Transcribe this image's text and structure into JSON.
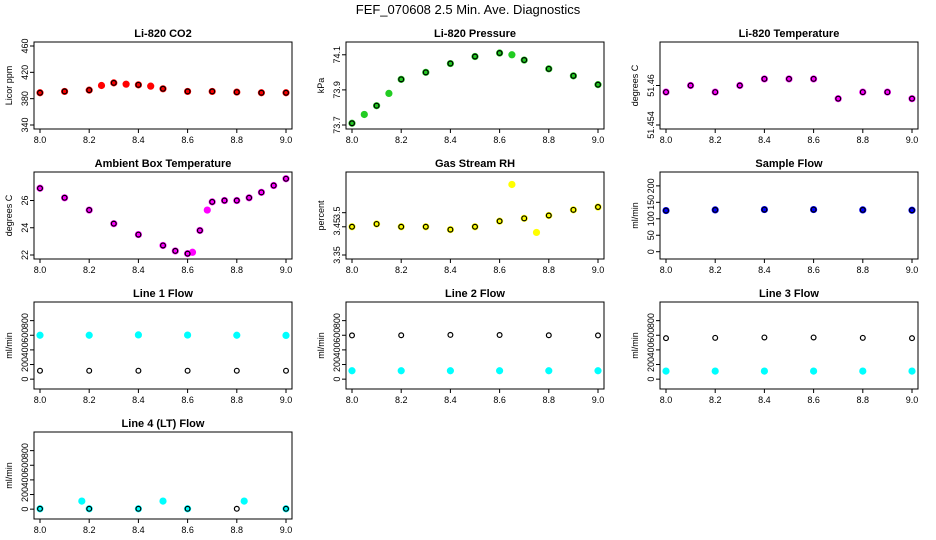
{
  "title": "FEF_070608  2.5 Min. Ave. Diagnostics",
  "colors": {
    "black": "#000000",
    "red": "#ff0000",
    "green": "#22cc22",
    "magenta": "#ff00ff",
    "yellow": "#ffff00",
    "blue": "#0000ff",
    "cyan": "#00ffff"
  },
  "chart_data": [
    {
      "type": "scatter",
      "title": "Li-820 CO2",
      "ylabel": "Licor ppm",
      "xlim": [
        8.0,
        9.0
      ],
      "ylim": [
        340,
        460
      ],
      "xticks": [
        8.0,
        8.2,
        8.4,
        8.6,
        8.8,
        9.0
      ],
      "yticks": [
        340,
        380,
        420,
        460
      ],
      "series": [
        {
          "color": "red",
          "x": [
            8.0,
            8.1,
            8.2,
            8.25,
            8.3,
            8.35,
            8.4,
            8.45,
            8.5,
            8.6,
            8.7,
            8.8,
            8.9,
            9.0
          ],
          "y": [
            389,
            391,
            393,
            400,
            404,
            402,
            401,
            399,
            395,
            391,
            391,
            390,
            389,
            389
          ]
        },
        {
          "color": "black",
          "x": [
            8.0,
            8.1,
            8.2,
            8.3,
            8.4,
            8.5,
            8.6,
            8.7,
            8.8,
            8.9,
            9.0
          ],
          "y": [
            389,
            391,
            393,
            404,
            401,
            395,
            391,
            391,
            390,
            389,
            389
          ]
        }
      ]
    },
    {
      "type": "scatter",
      "title": "Li-820 Pressure",
      "ylabel": "kPa",
      "xlim": [
        8.0,
        9.0
      ],
      "ylim": [
        73.7,
        74.15
      ],
      "xticks": [
        8.0,
        8.2,
        8.4,
        8.6,
        8.8,
        9.0
      ],
      "yticks": [
        73.7,
        73.9,
        74.1
      ],
      "series": [
        {
          "color": "green",
          "x": [
            8.0,
            8.05,
            8.1,
            8.15,
            8.2,
            8.3,
            8.4,
            8.5,
            8.6,
            8.65,
            8.7,
            8.8,
            8.9,
            9.0
          ],
          "y": [
            73.71,
            73.76,
            73.81,
            73.88,
            73.96,
            74.0,
            74.05,
            74.09,
            74.11,
            74.1,
            74.07,
            74.02,
            73.98,
            73.93
          ]
        },
        {
          "color": "black",
          "x": [
            8.0,
            8.1,
            8.2,
            8.3,
            8.4,
            8.5,
            8.6,
            8.7,
            8.8,
            8.9,
            9.0
          ],
          "y": [
            73.71,
            73.81,
            73.96,
            74.0,
            74.05,
            74.09,
            74.11,
            74.07,
            74.02,
            73.98,
            73.93
          ]
        }
      ]
    },
    {
      "type": "scatter",
      "title": "Li-820 Temperature",
      "ylabel": "degrees C",
      "xlim": [
        8.0,
        9.0
      ],
      "ylim": [
        51.454,
        51.466
      ],
      "xticks": [
        8.0,
        8.2,
        8.4,
        8.6,
        8.8,
        9.0
      ],
      "yticks": [
        51.454,
        51.46
      ],
      "series": [
        {
          "color": "magenta",
          "x": [
            8.0,
            8.1,
            8.2,
            8.3,
            8.4,
            8.5,
            8.6,
            8.7,
            8.8,
            8.9,
            9.0
          ],
          "y": [
            51.459,
            51.46,
            51.459,
            51.46,
            51.461,
            51.461,
            51.461,
            51.458,
            51.459,
            51.459,
            51.458
          ]
        },
        {
          "color": "black",
          "x": [
            8.0,
            8.1,
            8.2,
            8.3,
            8.4,
            8.5,
            8.6,
            8.7,
            8.8,
            8.9,
            9.0
          ],
          "y": [
            51.459,
            51.46,
            51.459,
            51.46,
            51.461,
            51.461,
            51.461,
            51.458,
            51.459,
            51.459,
            51.458
          ]
        }
      ]
    },
    {
      "type": "scatter",
      "title": "Ambient Box Temperature",
      "ylabel": "degrees C",
      "xlim": [
        8.0,
        9.0
      ],
      "ylim": [
        22,
        27.8
      ],
      "xticks": [
        8.0,
        8.2,
        8.4,
        8.6,
        8.8,
        9.0
      ],
      "yticks": [
        22,
        24,
        26
      ],
      "series": [
        {
          "color": "magenta",
          "x": [
            8.0,
            8.1,
            8.2,
            8.3,
            8.4,
            8.5,
            8.55,
            8.6,
            8.62,
            8.65,
            8.68,
            8.7,
            8.75,
            8.8,
            8.85,
            8.9,
            8.95,
            9.0
          ],
          "y": [
            26.9,
            26.2,
            25.3,
            24.3,
            23.5,
            22.7,
            22.3,
            22.1,
            22.2,
            23.8,
            25.3,
            25.9,
            26.0,
            26.0,
            26.2,
            26.6,
            27.1,
            27.6
          ]
        },
        {
          "color": "black",
          "x": [
            8.0,
            8.1,
            8.2,
            8.3,
            8.4,
            8.5,
            8.55,
            8.6,
            8.65,
            8.7,
            8.75,
            8.8,
            8.85,
            8.9,
            8.95,
            9.0
          ],
          "y": [
            26.9,
            26.2,
            25.3,
            24.3,
            23.5,
            22.7,
            22.3,
            22.1,
            23.8,
            25.9,
            26.0,
            26.0,
            26.2,
            26.6,
            27.1,
            27.6
          ]
        }
      ]
    },
    {
      "type": "scatter",
      "title": "Gas Stream RH",
      "ylabel": "percent",
      "xlim": [
        8.0,
        9.0
      ],
      "ylim": [
        3.35,
        3.63
      ],
      "xticks": [
        8.0,
        8.2,
        8.4,
        8.6,
        8.8,
        9.0
      ],
      "yticks": [
        3.35,
        3.45,
        3.5
      ],
      "series": [
        {
          "color": "yellow",
          "x": [
            8.0,
            8.1,
            8.2,
            8.3,
            8.4,
            8.5,
            8.6,
            8.65,
            8.7,
            8.75,
            8.8,
            8.9,
            9.0
          ],
          "y": [
            3.45,
            3.46,
            3.45,
            3.45,
            3.44,
            3.45,
            3.47,
            3.6,
            3.48,
            3.43,
            3.49,
            3.51,
            3.52
          ]
        },
        {
          "color": "black",
          "x": [
            8.0,
            8.1,
            8.2,
            8.3,
            8.4,
            8.5,
            8.6,
            8.7,
            8.8,
            8.9,
            9.0
          ],
          "y": [
            3.45,
            3.46,
            3.45,
            3.45,
            3.44,
            3.45,
            3.47,
            3.48,
            3.49,
            3.51,
            3.52
          ]
        }
      ]
    },
    {
      "type": "scatter",
      "title": "Sample Flow",
      "ylabel": "ml/min",
      "xlim": [
        8.0,
        9.0
      ],
      "ylim": [
        -10,
        230
      ],
      "xticks": [
        8.0,
        8.2,
        8.4,
        8.6,
        8.8,
        9.0
      ],
      "yticks": [
        0,
        50,
        100,
        150,
        200
      ],
      "series": [
        {
          "color": "blue",
          "x": [
            8.0,
            8.2,
            8.4,
            8.6,
            8.8,
            9.0
          ],
          "y": [
            125,
            127,
            128,
            128,
            127,
            126
          ]
        },
        {
          "color": "black",
          "x": [
            8.0,
            8.2,
            8.4,
            8.6,
            8.8,
            9.0
          ],
          "y": [
            125,
            127,
            128,
            128,
            127,
            126
          ]
        }
      ]
    },
    {
      "type": "scatter",
      "title": "Line 1 Flow",
      "ylabel": "ml/min",
      "xlim": [
        8.0,
        9.0
      ],
      "ylim": [
        -80,
        1000
      ],
      "xticks": [
        8.0,
        8.2,
        8.4,
        8.6,
        8.8,
        9.0
      ],
      "yticks": [
        0,
        200,
        400,
        600,
        800
      ],
      "series": [
        {
          "color": "cyan",
          "x": [
            8.0,
            8.2,
            8.4,
            8.6,
            8.8,
            9.0
          ],
          "y": [
            600,
            600,
            605,
            603,
            600,
            598
          ]
        },
        {
          "color": "black",
          "x": [
            8.0,
            8.2,
            8.4,
            8.6,
            8.8,
            9.0
          ],
          "y": [
            115,
            115,
            115,
            115,
            115,
            115
          ]
        }
      ]
    },
    {
      "type": "scatter",
      "title": "Line 2 Flow",
      "ylabel": "ml/min",
      "xlim": [
        8.0,
        9.0
      ],
      "ylim": [
        -80,
        1000
      ],
      "xticks": [
        8.0,
        8.2,
        8.4,
        8.6,
        8.8,
        9.0
      ],
      "yticks": [
        0,
        200,
        400,
        600,
        800
      ],
      "series": [
        {
          "color": "cyan",
          "x": [
            8.0,
            8.2,
            8.4,
            8.6,
            8.8,
            9.0
          ],
          "y": [
            115,
            115,
            115,
            115,
            115,
            115
          ]
        },
        {
          "color": "black",
          "x": [
            8.0,
            8.2,
            8.4,
            8.6,
            8.8,
            9.0
          ],
          "y": [
            598,
            600,
            605,
            603,
            600,
            598
          ]
        }
      ]
    },
    {
      "type": "scatter",
      "title": "Line 3 Flow",
      "ylabel": "ml/min",
      "xlim": [
        8.0,
        9.0
      ],
      "ylim": [
        -80,
        1000
      ],
      "xticks": [
        8.0,
        8.2,
        8.4,
        8.6,
        8.8,
        9.0
      ],
      "yticks": [
        0,
        200,
        400,
        600,
        800
      ],
      "series": [
        {
          "color": "cyan",
          "x": [
            8.0,
            8.2,
            8.4,
            8.6,
            8.8,
            9.0
          ],
          "y": [
            110,
            110,
            110,
            110,
            110,
            110
          ]
        },
        {
          "color": "black",
          "x": [
            8.0,
            8.2,
            8.4,
            8.6,
            8.8,
            9.0
          ],
          "y": [
            560,
            565,
            570,
            570,
            565,
            560
          ]
        }
      ]
    },
    {
      "type": "scatter",
      "title": "Line 4 (LT) Flow",
      "ylabel": "ml/min",
      "xlim": [
        8.0,
        9.0
      ],
      "ylim": [
        -80,
        1000
      ],
      "xticks": [
        8.0,
        8.2,
        8.4,
        8.6,
        8.8,
        9.0
      ],
      "yticks": [
        0,
        200,
        400,
        600,
        800
      ],
      "series": [
        {
          "color": "cyan",
          "x": [
            8.0,
            8.17,
            8.2,
            8.4,
            8.5,
            8.6,
            8.83,
            9.0
          ],
          "y": [
            5,
            110,
            5,
            5,
            110,
            5,
            110,
            5
          ]
        },
        {
          "color": "black",
          "x": [
            8.0,
            8.2,
            8.4,
            8.6,
            8.8,
            9.0
          ],
          "y": [
            5,
            5,
            5,
            5,
            5,
            5
          ]
        }
      ]
    }
  ]
}
